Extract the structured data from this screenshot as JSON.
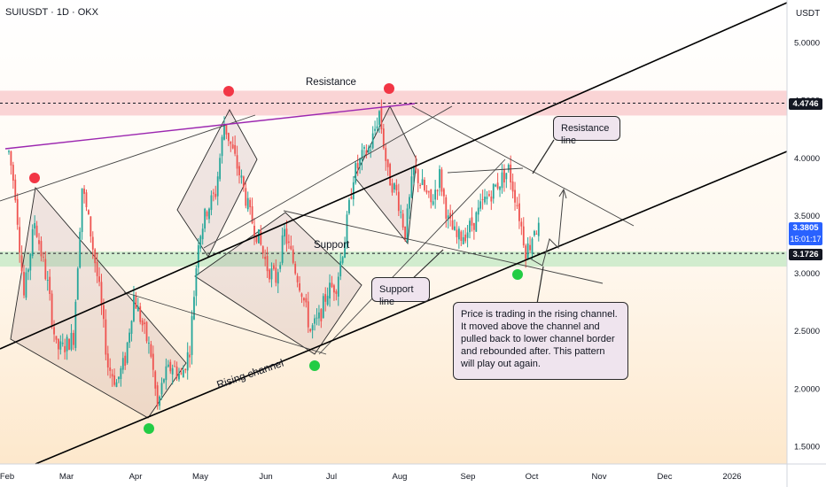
{
  "header": {
    "symbol_title": "SUIUSDT · 1D · OKX"
  },
  "chart_data": {
    "type": "candlestick",
    "title": "SUIUSDT · 1D · OKX",
    "currency_label": "USDT",
    "y_ticks": [
      "5.0000",
      "4.5000",
      "4.0000",
      "3.5000",
      "3.0000",
      "2.5000",
      "2.0000",
      "1.5000"
    ],
    "y_tick_values": [
      5.0,
      4.5,
      4.0,
      3.5,
      3.0,
      2.5,
      2.0,
      1.5
    ],
    "ylim": [
      1.3,
      5.35
    ],
    "x_tick_labels": [
      "Feb",
      "Mar",
      "Apr",
      "May",
      "Jun",
      "Jul",
      "Aug",
      "Sep",
      "Oct",
      "Nov",
      "Dec",
      "2026"
    ],
    "price_levels": {
      "resistance_tag": "4.4746",
      "resistance_value": 4.4746,
      "current_price": "3.3805",
      "current_value": 3.3805,
      "countdown": "15:01:17",
      "support_tag": "3.1726",
      "support_value": 3.1726
    },
    "price_path": [
      [
        0,
        4.05
      ],
      [
        3,
        3.7
      ],
      [
        7,
        2.8
      ],
      [
        12,
        3.45
      ],
      [
        18,
        2.9
      ],
      [
        22,
        2.35
      ],
      [
        25,
        2.35
      ],
      [
        30,
        2.45
      ],
      [
        34,
        3.75
      ],
      [
        38,
        3.35
      ],
      [
        42,
        2.85
      ],
      [
        46,
        2.2
      ],
      [
        50,
        2.05
      ],
      [
        54,
        2.25
      ],
      [
        58,
        2.8
      ],
      [
        62,
        2.55
      ],
      [
        66,
        2.3
      ],
      [
        69,
        1.83
      ],
      [
        72,
        2.1
      ],
      [
        76,
        2.2
      ],
      [
        80,
        2.1
      ],
      [
        84,
        2.35
      ],
      [
        88,
        3.3
      ],
      [
        92,
        3.55
      ],
      [
        96,
        3.7
      ],
      [
        100,
        4.3
      ],
      [
        104,
        4.05
      ],
      [
        108,
        3.8
      ],
      [
        112,
        3.5
      ],
      [
        116,
        3.3
      ],
      [
        120,
        3.05
      ],
      [
        124,
        2.95
      ],
      [
        128,
        3.35
      ],
      [
        132,
        3.1
      ],
      [
        136,
        2.85
      ],
      [
        140,
        2.5
      ],
      [
        144,
        2.6
      ],
      [
        148,
        2.85
      ],
      [
        152,
        2.9
      ],
      [
        156,
        3.3
      ],
      [
        160,
        3.85
      ],
      [
        164,
        4.0
      ],
      [
        168,
        4.1
      ],
      [
        172,
        4.4
      ],
      [
        176,
        3.85
      ],
      [
        180,
        3.7
      ],
      [
        184,
        3.35
      ],
      [
        188,
        3.9
      ],
      [
        192,
        3.75
      ],
      [
        196,
        3.6
      ],
      [
        200,
        3.85
      ],
      [
        204,
        3.45
      ],
      [
        208,
        3.3
      ],
      [
        212,
        3.35
      ],
      [
        216,
        3.45
      ],
      [
        220,
        3.6
      ],
      [
        224,
        3.7
      ],
      [
        228,
        3.8
      ],
      [
        232,
        3.9
      ],
      [
        236,
        3.6
      ],
      [
        240,
        3.2
      ],
      [
        242,
        3.25
      ],
      [
        244,
        3.4
      ],
      [
        246,
        3.38
      ]
    ],
    "annotations": {
      "resistance_label": "Resistance",
      "support_label": "Support",
      "rising_channel_label": "Rising channel",
      "resistance_line_callout": "Resistance line",
      "support_line_callout": "Support line",
      "note_callout": "Price is trading in the rising channel. It moved above the channel and pulled back to lower channel border and rebounded after. This pattern will play out again."
    },
    "colors": {
      "up": "#26a69a",
      "down": "#ef5350",
      "resistance_zone": "#f6b3b8",
      "support_zone": "#b9e6bd",
      "top_marker": "#f23645",
      "bottom_marker": "#22cc44",
      "purple_line": "#9c27b0",
      "callout_fill": "#efe4ee"
    }
  }
}
